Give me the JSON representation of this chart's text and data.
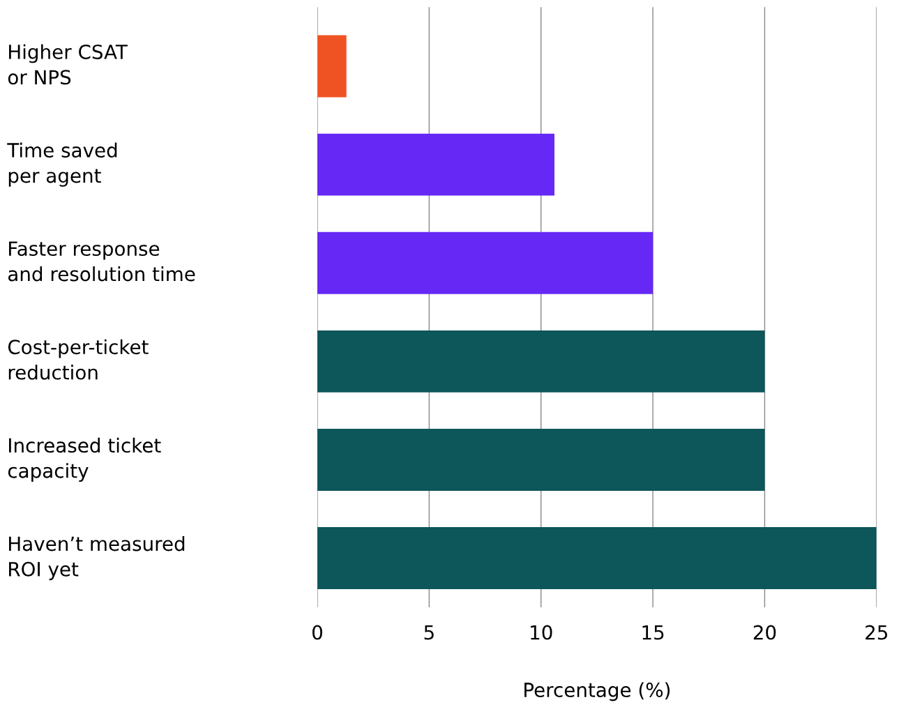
{
  "chart_data": {
    "type": "bar",
    "orientation": "horizontal",
    "xlabel": "Percentage (%)",
    "categories": [
      "Higher CSAT\nor NPS",
      "Time saved\nper agent",
      "Faster response\nand resolution time",
      "Cost-per-ticket\nreduction",
      "Increased ticket\ncapacity",
      "Haven’t measured\nROI yet"
    ],
    "values": [
      1.3,
      10.6,
      15,
      20,
      20,
      25
    ],
    "colors": [
      "#f05323",
      "#6629f5",
      "#6629f5",
      "#0d5659",
      "#0d5659",
      "#0d5659"
    ],
    "xlim": [
      0,
      25
    ],
    "xticks": [
      0,
      5,
      10,
      15,
      20,
      25
    ],
    "grid": "x"
  }
}
